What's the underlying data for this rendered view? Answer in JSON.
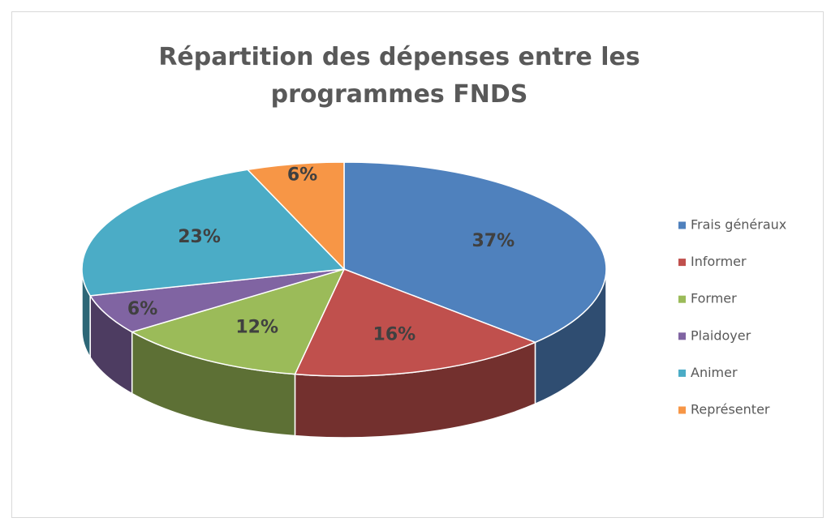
{
  "chart_data": {
    "type": "pie3d",
    "title": "Répartition des dépenses entre les programmes FNDS",
    "categories": [
      "Frais généraux",
      "Informer",
      "Former",
      "Plaidoyer",
      "Animer",
      "Représenter"
    ],
    "values": [
      37,
      16,
      12,
      6,
      23,
      6
    ],
    "value_labels": [
      "37%",
      "16%",
      "12%",
      "6%",
      "23%",
      "6%"
    ],
    "colors": [
      "#4f81bd",
      "#c0504d",
      "#9bbb59",
      "#8064a2",
      "#4bacc6",
      "#f79646"
    ],
    "legend": "right"
  }
}
